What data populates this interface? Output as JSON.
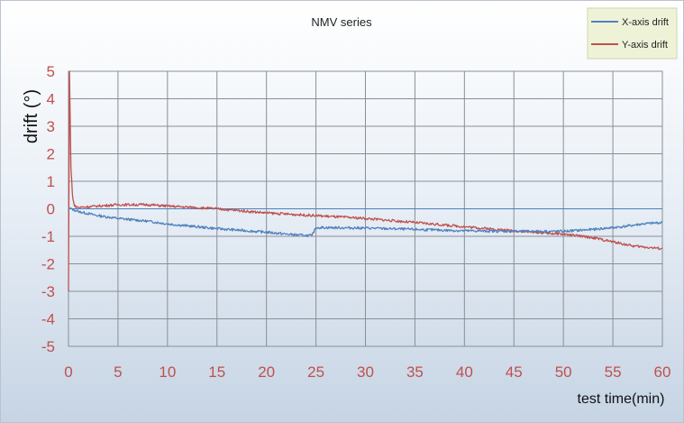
{
  "chart_data": {
    "type": "line",
    "title": "NMV series",
    "xlabel": "test time(min)",
    "ylabel": "drift (°)",
    "xlim": [
      0,
      60
    ],
    "ylim": [
      -5,
      5
    ],
    "x_ticks": [
      0,
      5,
      10,
      15,
      20,
      25,
      30,
      35,
      40,
      45,
      50,
      55,
      60
    ],
    "y_ticks": [
      5,
      4,
      3,
      2,
      1,
      0,
      -1,
      -2,
      -3,
      -4,
      -5
    ],
    "grid": true,
    "legend_position": "top-right",
    "series": [
      {
        "name": "X-axis drift",
        "color": "#4f81bd",
        "x": [
          0,
          0.3,
          1,
          3,
          5,
          8,
          10,
          12,
          15,
          18,
          20,
          22,
          24,
          24.6,
          25,
          30,
          35,
          40,
          45,
          50,
          53,
          56,
          58,
          60
        ],
        "y": [
          0,
          0,
          -0.1,
          -0.25,
          -0.35,
          -0.45,
          -0.55,
          -0.62,
          -0.72,
          -0.8,
          -0.85,
          -0.92,
          -0.97,
          -0.97,
          -0.68,
          -0.7,
          -0.75,
          -0.8,
          -0.82,
          -0.82,
          -0.75,
          -0.65,
          -0.55,
          -0.5
        ]
      },
      {
        "name": "Y-axis drift",
        "color": "#c0504d",
        "x": [
          0,
          0.1,
          0.25,
          0.4,
          0.6,
          1,
          3,
          5,
          8,
          10,
          15,
          20,
          25,
          30,
          35,
          40,
          45,
          50,
          53,
          55,
          57,
          60
        ],
        "y": [
          -3,
          5,
          1.5,
          0.5,
          0.1,
          0.05,
          0.1,
          0.15,
          0.15,
          0.1,
          0,
          -0.15,
          -0.25,
          -0.35,
          -0.5,
          -0.65,
          -0.8,
          -0.92,
          -1.05,
          -1.2,
          -1.35,
          -1.45
        ]
      },
      {
        "name": "",
        "color": "#4f81bd",
        "x": [
          0,
          60
        ],
        "y": [
          0,
          0
        ]
      }
    ]
  }
}
